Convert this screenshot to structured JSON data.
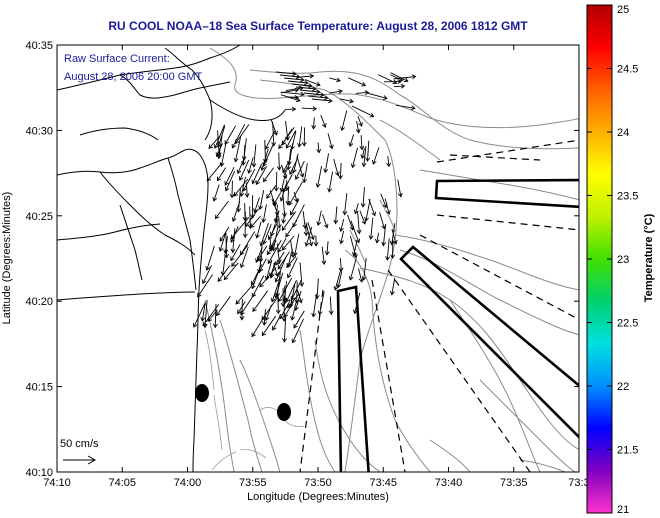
{
  "title": "RU COOL  NOAA–18  Sea Surface Temperature:  August 28, 2006 1812 GMT",
  "annotation": {
    "line1": "Raw Surface Current:",
    "line2": "August 28, 2006 20:00 GMT"
  },
  "scale": {
    "label": "50 cm/s"
  },
  "axes": {
    "xlabel": "Longitude (Degrees:Minutes)",
    "ylabel": "Latitude (Degrees:Minutes)",
    "xticks": [
      "74:10",
      "74:05",
      "74:00",
      "73:55",
      "73:50",
      "73:45",
      "73:40",
      "73:35",
      "73:3"
    ],
    "yticks": [
      "40:35",
      "40:30",
      "40:25",
      "40:20",
      "40:15",
      "40:10"
    ]
  },
  "colorbar": {
    "label": "Temperature (°C)",
    "ticks": [
      "25",
      "24.5",
      "24",
      "23.5",
      "23",
      "22.5",
      "22",
      "21.5",
      "21"
    ],
    "min": 21,
    "max": 25,
    "colors": [
      "#ff33cc",
      "#8000c0",
      "#0000ff",
      "#0090ff",
      "#00e0e0",
      "#00d070",
      "#40e000",
      "#c0f000",
      "#ffff00",
      "#ffb000",
      "#ff6000",
      "#ff0000",
      "#b00000"
    ]
  },
  "map": {
    "xrange": [
      "74:10",
      "73:3"
    ],
    "yrange": [
      "40:10",
      "40:35"
    ],
    "markers": [
      "buoy",
      "buoy"
    ],
    "features": [
      "coastline",
      "bathymetry-contours",
      "current-vectors",
      "shipping-lanes"
    ]
  }
}
